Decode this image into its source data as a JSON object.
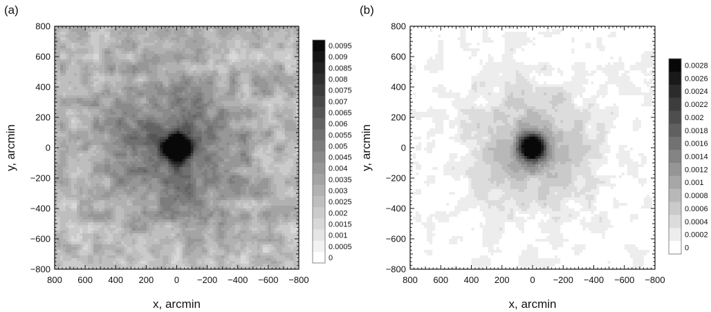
{
  "chart_data": [
    {
      "type": "heatmap",
      "panel_label": "(a)",
      "xlabel": "x, arcmin",
      "ylabel": "y, arcmin",
      "xlim": [
        800,
        -800
      ],
      "ylim": [
        -800,
        800
      ],
      "x_reversed": true,
      "x_ticks": [
        800,
        600,
        400,
        200,
        0,
        -200,
        -400,
        -600,
        -800
      ],
      "y_ticks": [
        800,
        600,
        400,
        200,
        0,
        -200,
        -400,
        -600,
        -800
      ],
      "colorbar": {
        "min": 0,
        "max": 0.0095,
        "step": 0.0005,
        "labels": [
          "0.0095",
          "0.009",
          "0.0085",
          "0.008",
          "0.0075",
          "0.007",
          "0.0065",
          "0.006",
          "0.0055",
          "0.005",
          "0.0045",
          "0.004",
          "0.0035",
          "0.003",
          "0.0025",
          "0.002",
          "0.0015",
          "0.001",
          "0.0005",
          "0"
        ]
      },
      "field": {
        "center": [
          0,
          0
        ],
        "peak_value": 0.0095,
        "core_radius_arcmin": 55,
        "halo_radius_arcmin": 320,
        "background_level": 0.0028,
        "noise_amplitude": 0.0018
      },
      "grid": false,
      "colormap": "grayscale (white = 0, black = max)"
    },
    {
      "type": "heatmap",
      "panel_label": "(b)",
      "xlabel": "x, arcmin",
      "ylabel": "y, arcmin",
      "xlim": [
        800,
        -800
      ],
      "ylim": [
        -800,
        800
      ],
      "x_reversed": true,
      "x_ticks": [
        800,
        600,
        400,
        200,
        0,
        -200,
        -400,
        -600,
        -800
      ],
      "y_ticks": [
        800,
        600,
        400,
        200,
        0,
        -200,
        -400,
        -600,
        -800
      ],
      "colorbar": {
        "min": 0,
        "max": 0.0028,
        "step": 0.0002,
        "labels": [
          "0.0028",
          "0.0026",
          "0.0024",
          "0.0022",
          "0.002",
          "0.0018",
          "0.0016",
          "0.0014",
          "0.0012",
          "0.001",
          "0.0008",
          "0.0006",
          "0.0004",
          "0.0002",
          "0"
        ]
      },
      "field": {
        "center": [
          0,
          0
        ],
        "peak_value": 0.0028,
        "core_radius_arcmin": 55,
        "halo_radius_arcmin": 260,
        "background_level": 0.0001,
        "noise_amplitude": 0.00035
      },
      "grid": false,
      "colormap": "grayscale (white = 0, black = max)"
    }
  ]
}
